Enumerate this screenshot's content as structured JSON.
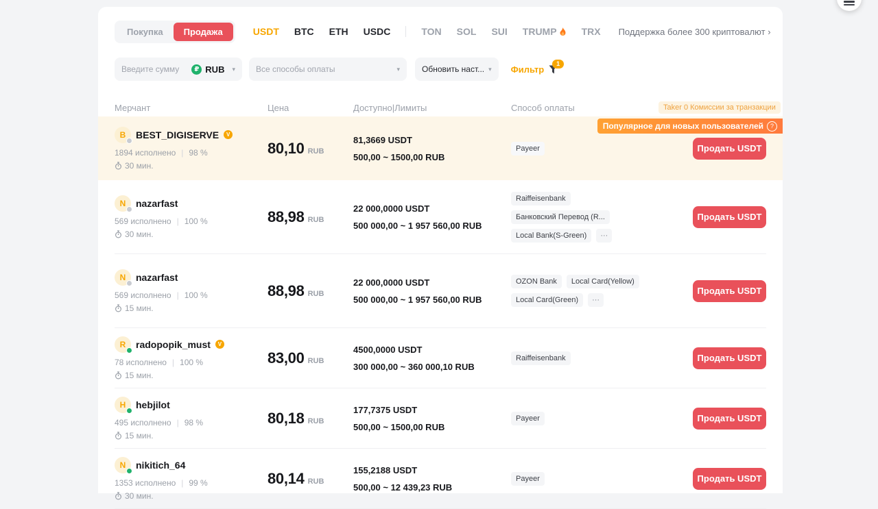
{
  "colors": {
    "accent_orange": "#f7a600",
    "sell_red": "#e9515a",
    "green": "#20b26c",
    "row_highlight": "#fdf6e8",
    "tooltip_gradient_start": "#ffa133",
    "tooltip_gradient_end": "#ff7a3d"
  },
  "toolbar": {
    "buy_label": "Покупка",
    "sell_label": "Продажа",
    "coins": [
      "USDT",
      "BTC",
      "ETH",
      "USDC"
    ],
    "alt_coins": [
      "TON",
      "SOL",
      "SUI",
      "TRUMP",
      "TRX"
    ],
    "support_label": "Поддержка более 300 криптовалют"
  },
  "filters": {
    "amount_placeholder": "Введите сумму",
    "currency": "RUB",
    "payment_placeholder": "Все способы оплаты",
    "refresh_label": "Обновить наст...",
    "filter_label": "Фильтр",
    "filter_badge": "1"
  },
  "table": {
    "headers": [
      "Мерчант",
      "Цена",
      "Доступно|Лимиты",
      "Способ оплаты"
    ],
    "taker_badge": "Taker 0 Комиссии за транзакции",
    "popular_tooltip": "Популярное для новых пользователей",
    "sell_label": "Продать USDT"
  },
  "ui": {
    "caret": "▾",
    "chevron": "›",
    "more": "···",
    "help": "?",
    "pipe": "|",
    "verified": "V",
    "rub_symbol": "₽"
  },
  "rows": [
    {
      "initial": "B",
      "name": "BEST_DIGISERVE",
      "verified": true,
      "status": "gray",
      "orders": "1894 исполнено",
      "rate": "98 %",
      "time": "30 мин.",
      "price": "80,10",
      "price_currency": "RUB",
      "available": "81,3669 USDT",
      "limits": "500,00 ~ 1500,00 RUB",
      "payments": [
        "Payeer"
      ],
      "more": false,
      "highlighted": true
    },
    {
      "initial": "N",
      "name": "nazarfast",
      "verified": false,
      "status": "gray",
      "orders": "569 исполнено",
      "rate": "100 %",
      "time": "30 мин.",
      "price": "88,98",
      "price_currency": "RUB",
      "available": "22 000,0000 USDT",
      "limits": "500 000,00 ~ 1 957 560,00 RUB",
      "payments": [
        "Raiffeisenbank",
        "Банковский Перевод (R...",
        "Local Bank(S-Green)"
      ],
      "more": true,
      "highlighted": false
    },
    {
      "initial": "N",
      "name": "nazarfast",
      "verified": false,
      "status": "gray",
      "orders": "569 исполнено",
      "rate": "100 %",
      "time": "15 мин.",
      "price": "88,98",
      "price_currency": "RUB",
      "available": "22 000,0000 USDT",
      "limits": "500 000,00 ~ 1 957 560,00 RUB",
      "payments": [
        "OZON Bank",
        "Local Card(Yellow)",
        "Local Card(Green)"
      ],
      "more": true,
      "highlighted": false
    },
    {
      "initial": "R",
      "name": "radopopik_must",
      "verified": true,
      "status": "green",
      "orders": "78 исполнено",
      "rate": "100 %",
      "time": "15 мин.",
      "price": "83,00",
      "price_currency": "RUB",
      "available": "4500,0000 USDT",
      "limits": "300 000,00 ~ 360 000,10 RUB",
      "payments": [
        "Raiffeisenbank"
      ],
      "more": false,
      "highlighted": false
    },
    {
      "initial": "H",
      "name": "hebjilot",
      "verified": false,
      "status": "green",
      "orders": "495 исполнено",
      "rate": "98 %",
      "time": "15 мин.",
      "price": "80,18",
      "price_currency": "RUB",
      "available": "177,7375 USDT",
      "limits": "500,00 ~ 1500,00 RUB",
      "payments": [
        "Payeer"
      ],
      "more": false,
      "highlighted": false
    },
    {
      "initial": "N",
      "name": "nikitich_64",
      "verified": false,
      "status": "green",
      "orders": "1353 исполнено",
      "rate": "99 %",
      "time": "30 мин.",
      "price": "80,14",
      "price_currency": "RUB",
      "available": "155,2188 USDT",
      "limits": "500,00 ~ 12 439,23 RUB",
      "payments": [
        "Payeer"
      ],
      "more": false,
      "highlighted": false
    }
  ]
}
